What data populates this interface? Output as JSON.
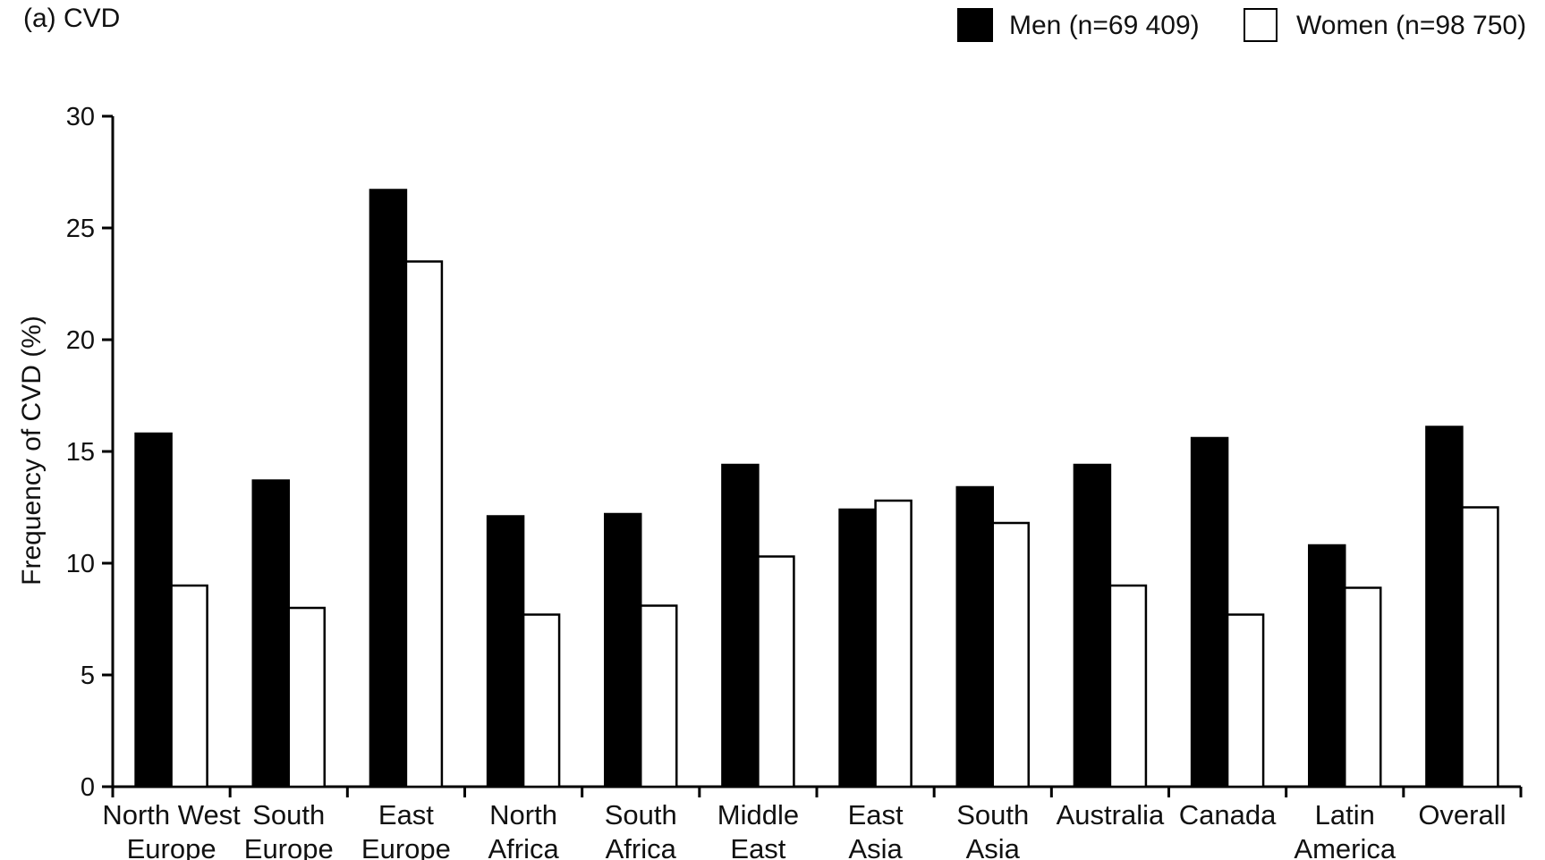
{
  "chart_data": {
    "type": "bar",
    "title": "(a) CVD",
    "ylabel": "Frequency of CVD (%)",
    "xlabel": "",
    "ylim": [
      0,
      30
    ],
    "yticks": [
      0,
      5,
      10,
      15,
      20,
      25,
      30
    ],
    "grid": false,
    "legend_position": "top-right",
    "categories": [
      [
        "North West",
        "Europe"
      ],
      [
        "South",
        "Europe"
      ],
      [
        "East",
        "Europe"
      ],
      [
        "North",
        "Africa"
      ],
      [
        "South",
        "Africa"
      ],
      [
        "Middle",
        "East"
      ],
      [
        "East",
        "Asia"
      ],
      [
        "South",
        "Asia"
      ],
      [
        "Australia"
      ],
      [
        "Canada"
      ],
      [
        "Latin",
        "America"
      ],
      [
        "Overall"
      ]
    ],
    "series": [
      {
        "name": "Men (n=69 409)",
        "color": "#000000",
        "values": [
          15.8,
          13.7,
          26.7,
          12.1,
          12.2,
          14.4,
          12.4,
          13.4,
          14.4,
          15.6,
          10.8,
          16.1
        ]
      },
      {
        "name": "Women (n=98 750)",
        "color": "#ffffff",
        "values": [
          9.0,
          8.0,
          23.5,
          7.7,
          8.1,
          10.3,
          12.8,
          11.8,
          9.0,
          7.7,
          8.9,
          12.5
        ]
      }
    ]
  }
}
